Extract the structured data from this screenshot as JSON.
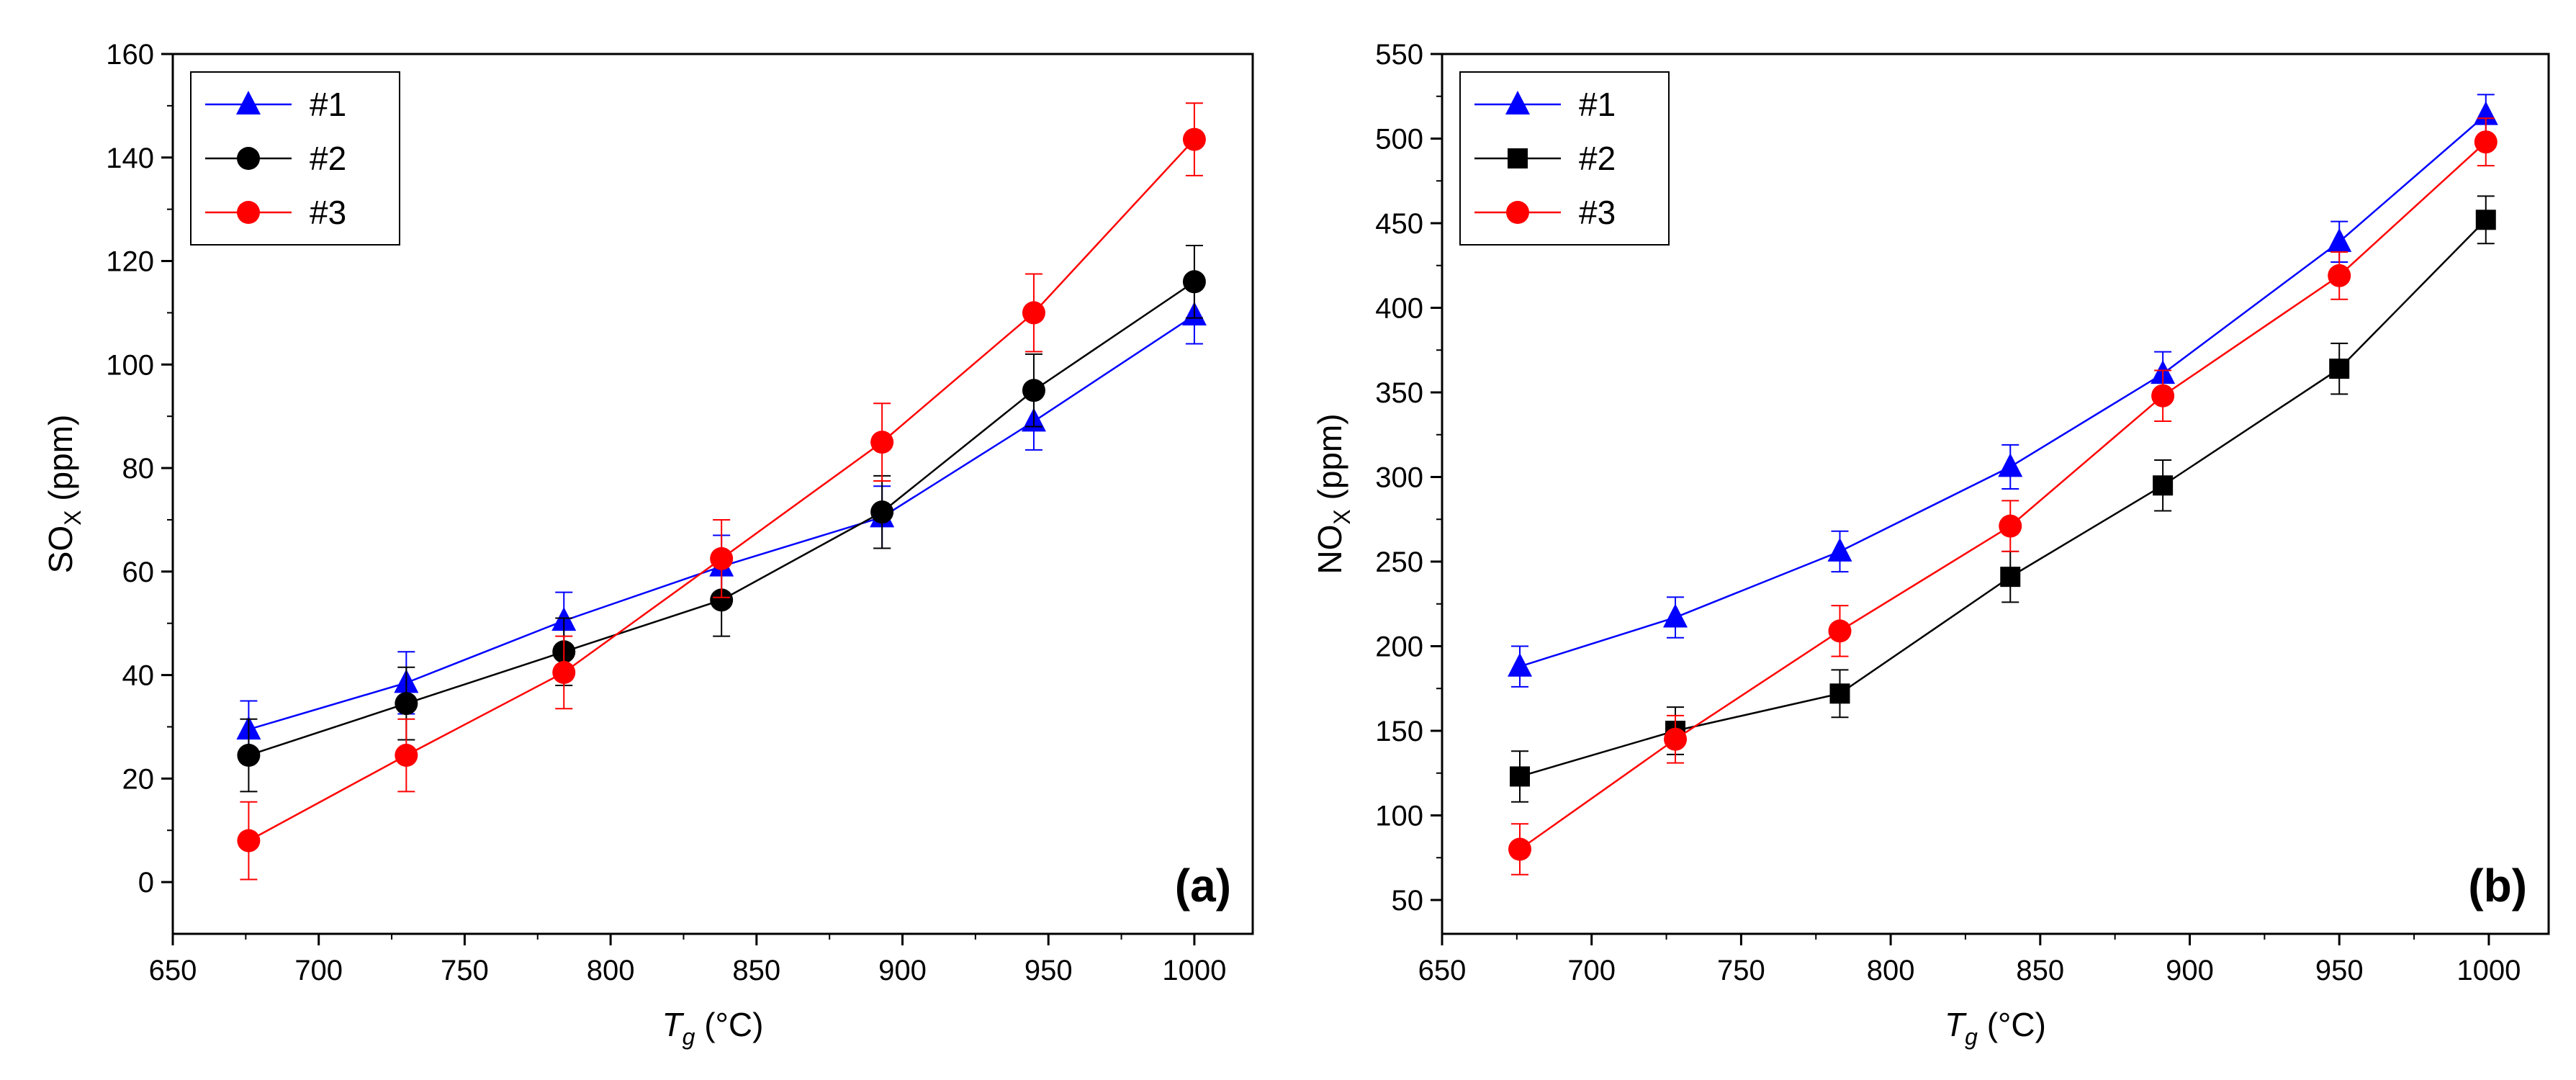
{
  "chart_data": [
    {
      "type": "line",
      "panel_label": "(a)",
      "x": [
        676,
        730,
        784,
        838,
        893,
        945,
        1000
      ],
      "xlim": [
        650,
        1020
      ],
      "xticks": [
        650,
        700,
        750,
        800,
        850,
        900,
        950,
        1000
      ],
      "xlabel": {
        "symbol": "T",
        "subscript": "g",
        "unit": " (°C)"
      },
      "ylim": [
        -10,
        160
      ],
      "yticks": [
        0,
        20,
        40,
        60,
        80,
        100,
        120,
        140,
        160
      ],
      "ylabel": {
        "main": "SO",
        "subscript": "X",
        "unit": " (ppm)"
      },
      "legend_position": "top-left",
      "series": [
        {
          "name": "#1",
          "color": "#0000ff",
          "marker": "triangle",
          "values": [
            29.5,
            38.5,
            50.5,
            61,
            70.5,
            89,
            109.5
          ],
          "errors": [
            5.5,
            6,
            5.5,
            6,
            6,
            5.5,
            5.5
          ]
        },
        {
          "name": "#2",
          "color": "#000000",
          "marker": "circle",
          "values": [
            24.5,
            34.5,
            44.5,
            54.5,
            71.5,
            95,
            116
          ],
          "errors": [
            7,
            7,
            6.5,
            7,
            7,
            7,
            7
          ]
        },
        {
          "name": "#3",
          "color": "#ff0000",
          "marker": "circle",
          "values": [
            8,
            24.5,
            40.5,
            62.5,
            85,
            110,
            143.5
          ],
          "errors": [
            7.5,
            7,
            7,
            7.5,
            7.5,
            7.5,
            7
          ]
        }
      ]
    },
    {
      "type": "line",
      "panel_label": "(b)",
      "x": [
        676,
        728,
        783,
        840,
        891,
        950,
        999
      ],
      "xlim": [
        650,
        1020
      ],
      "xticks": [
        650,
        700,
        750,
        800,
        850,
        900,
        950,
        1000
      ],
      "xlabel": {
        "symbol": "T",
        "subscript": "g",
        "unit": " (°C)"
      },
      "ylim": [
        30,
        550
      ],
      "yticks": [
        50,
        100,
        150,
        200,
        250,
        300,
        350,
        400,
        450,
        500,
        550
      ],
      "ylabel": {
        "main": "NO",
        "subscript": "X",
        "unit": " (ppm)"
      },
      "legend_position": "top-left",
      "series": [
        {
          "name": "#1",
          "color": "#0000ff",
          "marker": "triangle",
          "values": [
            188,
            217,
            256,
            306,
            361,
            439,
            514
          ],
          "errors": [
            12,
            12,
            12,
            13,
            13,
            12,
            12
          ]
        },
        {
          "name": "#2",
          "color": "#000000",
          "marker": "square",
          "values": [
            123,
            150,
            172,
            241,
            295,
            364,
            452
          ],
          "errors": [
            15,
            14,
            14,
            15,
            15,
            15,
            14
          ]
        },
        {
          "name": "#3",
          "color": "#ff0000",
          "marker": "circle",
          "values": [
            80,
            145,
            209,
            271,
            348,
            419,
            498
          ],
          "errors": [
            15,
            14,
            15,
            15,
            15,
            14,
            14
          ]
        }
      ]
    }
  ]
}
